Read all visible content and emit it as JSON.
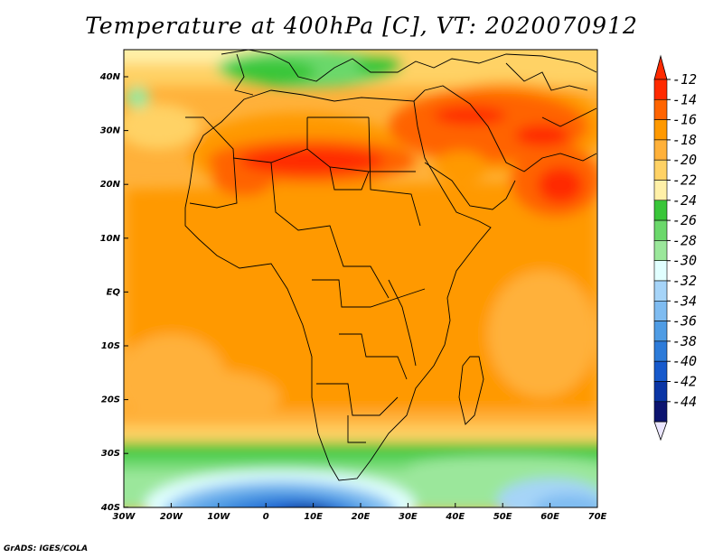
{
  "title": "Temperature at 400hPa [C], VT: 2020070912",
  "credit": "GrADS: IGES/COLA",
  "map": {
    "lon_range": [
      -30,
      75
    ],
    "lat_range": [
      -40,
      45
    ],
    "x_ticks": [
      "30W",
      "20W",
      "10W",
      "0",
      "10E",
      "20E",
      "30E",
      "40E",
      "50E",
      "60E",
      "70E"
    ],
    "y_ticks": [
      "40N",
      "30N",
      "20N",
      "10N",
      "EQ",
      "10S",
      "20S",
      "30S",
      "40S"
    ]
  },
  "colorbar": {
    "labels": [
      "-12",
      "-14",
      "-16",
      "-18",
      "-20",
      "-22",
      "-24",
      "-26",
      "-28",
      "-30",
      "-32",
      "-34",
      "-36",
      "-38",
      "-40",
      "-42",
      "-44"
    ],
    "colors": [
      "#ff2a00",
      "#ff6400",
      "#ff9900",
      "#ffb13a",
      "#ffd265",
      "#fff0a8",
      "#39c639",
      "#6bd86b",
      "#9be79b",
      "#e1ffff",
      "#a6d4f8",
      "#7fbcf1",
      "#4f9ce4",
      "#2d7bd9",
      "#1659cc",
      "#0a35a5",
      "#0c1470"
    ],
    "over_color": "#ff2a00",
    "under_color": "#ebe6ff"
  }
}
